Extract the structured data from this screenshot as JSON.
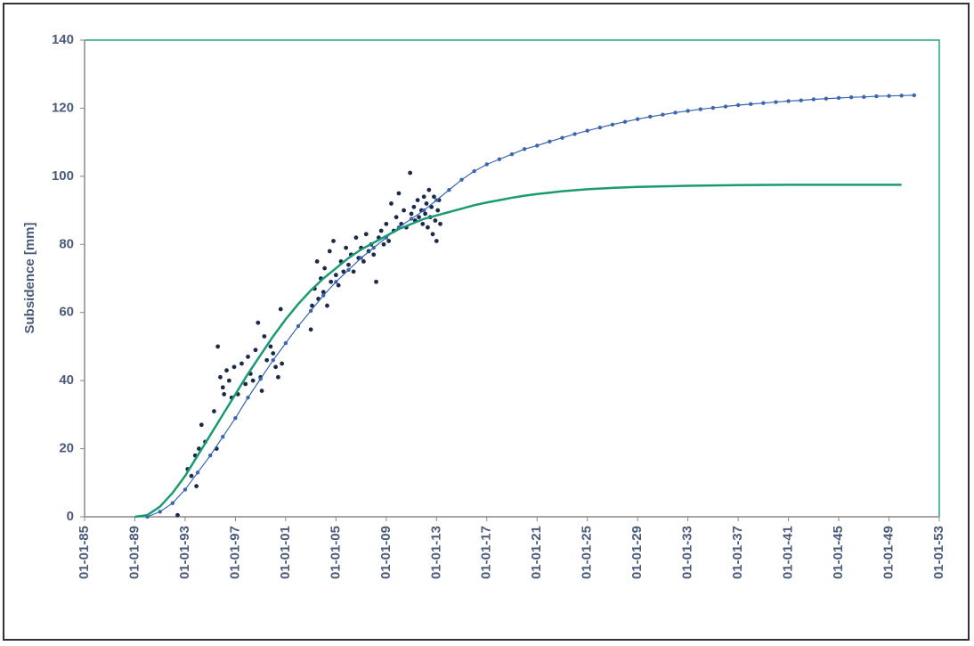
{
  "chart_data": {
    "type": "scatter",
    "y_label": "Subsidence [mm]",
    "xlim": [
      1985,
      2053
    ],
    "xticks": [
      {
        "value": 1985,
        "label": "01-01-85"
      },
      {
        "value": 1989,
        "label": "01-01-89"
      },
      {
        "value": 1993,
        "label": "01-01-93"
      },
      {
        "value": 1997,
        "label": "01-01-97"
      },
      {
        "value": 2001,
        "label": "01-01-01"
      },
      {
        "value": 2005,
        "label": "01-01-05"
      },
      {
        "value": 2009,
        "label": "01-01-09"
      },
      {
        "value": 2013,
        "label": "01-01-13"
      },
      {
        "value": 2017,
        "label": "01-01-17"
      },
      {
        "value": 2021,
        "label": "01-01-21"
      },
      {
        "value": 2025,
        "label": "01-01-25"
      },
      {
        "value": 2029,
        "label": "01-01-29"
      },
      {
        "value": 2033,
        "label": "01-01-33"
      },
      {
        "value": 2037,
        "label": "01-01-37"
      },
      {
        "value": 2041,
        "label": "01-01-41"
      },
      {
        "value": 2045,
        "label": "01-01-45"
      },
      {
        "value": 2049,
        "label": "01-01-49"
      },
      {
        "value": 2053,
        "label": "01-01-53"
      }
    ],
    "ylim": [
      0,
      140
    ],
    "yticks": [
      0,
      20,
      40,
      60,
      80,
      100,
      120,
      140
    ],
    "series": [
      {
        "mode": "points",
        "color": "#1c2a4a",
        "x": [
          1992.4,
          1993.2,
          1993.5,
          1993.8,
          1993.9,
          1994.1,
          1994.3,
          1994.6,
          1995.3,
          1995.5,
          1995.6,
          1995.8,
          1996.0,
          1996.1,
          1996.3,
          1996.5,
          1996.7,
          1996.9,
          1997.2,
          1997.5,
          1997.8,
          1998.0,
          1998.2,
          1998.4,
          1998.6,
          1998.8,
          1999.0,
          1999.1,
          1999.3,
          1999.5,
          1999.8,
          2000.0,
          2000.2,
          2000.4,
          2000.6,
          2000.7,
          2003.0,
          2003.1,
          2003.3,
          2003.5,
          2003.6,
          2003.8,
          2004.0,
          2004.1,
          2004.3,
          2004.5,
          2004.6,
          2004.8,
          2005.0,
          2005.2,
          2005.4,
          2005.6,
          2005.8,
          2006.0,
          2006.2,
          2006.4,
          2006.6,
          2006.8,
          2007.0,
          2007.2,
          2007.4,
          2007.6,
          2007.8,
          2008.0,
          2008.2,
          2008.4,
          2008.6,
          2008.8,
          2009.0,
          2009.2,
          2009.4,
          2009.6,
          2009.8,
          2010.0,
          2010.2,
          2010.4,
          2010.6,
          2010.9,
          2011.0,
          2011.2,
          2011.3,
          2011.5,
          2011.6,
          2011.8,
          2011.9,
          2012.0,
          2012.1,
          2012.2,
          2012.3,
          2012.4,
          2012.5,
          2012.6,
          2012.7,
          2012.8,
          2012.9,
          2013.0,
          2013.1,
          2013.2,
          2013.3
        ],
        "values": [
          0.5,
          14,
          12,
          18,
          9,
          20,
          27,
          22,
          31,
          20,
          50,
          41,
          38,
          36,
          43,
          40,
          35,
          44,
          36,
          45,
          39,
          47,
          42,
          40,
          49,
          57,
          41,
          37,
          53,
          46,
          50,
          48,
          44,
          41,
          61,
          45,
          55,
          62,
          67,
          75,
          64,
          70,
          66,
          73,
          62,
          78,
          69,
          81,
          71,
          68,
          75,
          72,
          79,
          74,
          77,
          72,
          82,
          76,
          79,
          75,
          83,
          78,
          80,
          77,
          69,
          82,
          84,
          80,
          86,
          81,
          92,
          84,
          88,
          95,
          86,
          90,
          85,
          101,
          89,
          91,
          87,
          93,
          88,
          90,
          86,
          94,
          89,
          92,
          85,
          96,
          88,
          91,
          83,
          94,
          87,
          81,
          90,
          93,
          86
        ]
      },
      {
        "mode": "line-markers",
        "color": "#3a66b0",
        "x": [
          1990,
          1991,
          1992,
          1993,
          1994,
          1995,
          1996,
          1997,
          1998,
          1999,
          2000,
          2001,
          2002,
          2003,
          2004,
          2005,
          2006,
          2007,
          2008,
          2009,
          2010,
          2011,
          2012,
          2013,
          2014,
          2015,
          2016,
          2017,
          2018,
          2019,
          2020,
          2021,
          2022,
          2023,
          2024,
          2025,
          2026,
          2027,
          2028,
          2029,
          2030,
          2031,
          2032,
          2033,
          2034,
          2035,
          2036,
          2037,
          2038,
          2039,
          2040,
          2041,
          2042,
          2043,
          2044,
          2045,
          2046,
          2047,
          2048,
          2049,
          2050,
          2051
        ],
        "values": [
          0,
          1.5,
          4,
          8,
          13,
          18,
          23.5,
          29,
          35,
          40.5,
          46,
          51,
          56,
          60.5,
          65,
          69,
          72.5,
          76,
          79,
          82,
          85,
          87.5,
          90,
          93,
          96,
          99,
          101.5,
          103.5,
          105,
          106.5,
          108,
          109,
          110.2,
          111.3,
          112.4,
          113.4,
          114.3,
          115.2,
          116,
          116.8,
          117.5,
          118.1,
          118.7,
          119.2,
          119.7,
          120.1,
          120.5,
          120.9,
          121.2,
          121.5,
          121.8,
          122.1,
          122.3,
          122.6,
          122.8,
          123,
          123.2,
          123.3,
          123.5,
          123.6,
          123.7,
          123.8
        ]
      },
      {
        "mode": "line",
        "color": "#1a9a72",
        "x": [
          1989,
          1990,
          1991,
          1992,
          1993,
          1994,
          1995,
          1996,
          1997,
          1998,
          1999,
          2000,
          2001,
          2002,
          2003,
          2004,
          2005,
          2006,
          2007,
          2008,
          2009,
          2010,
          2011,
          2012,
          2013,
          2014,
          2015,
          2016,
          2017,
          2018,
          2019,
          2020,
          2021,
          2022,
          2023,
          2024,
          2025,
          2027,
          2029,
          2033,
          2037,
          2041,
          2045,
          2050
        ],
        "values": [
          0,
          0.5,
          3,
          7,
          12,
          18,
          24,
          30,
          36,
          42,
          47.5,
          53,
          58,
          62.5,
          66.5,
          70,
          73,
          76,
          78.5,
          80.5,
          82.5,
          84.5,
          86,
          87.5,
          88.5,
          89.5,
          90.5,
          91.5,
          92.3,
          93,
          93.7,
          94.3,
          94.8,
          95.2,
          95.6,
          95.9,
          96.2,
          96.6,
          96.9,
          97.2,
          97.4,
          97.5,
          97.5,
          97.5
        ]
      }
    ]
  }
}
